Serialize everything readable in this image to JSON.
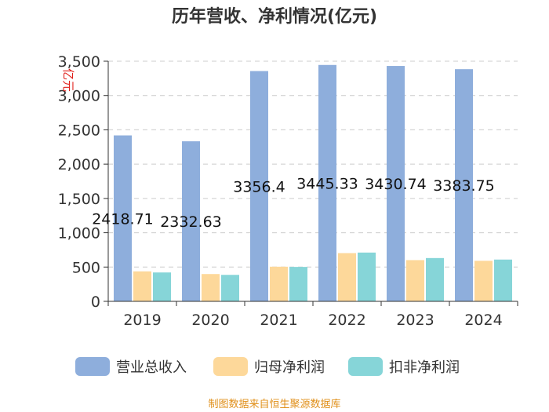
{
  "chart_data": {
    "type": "bar",
    "title": "历年营收、净利情况(亿元)",
    "ylabel": "亿元",
    "xlabel": "",
    "categories": [
      "2019",
      "2020",
      "2021",
      "2022",
      "2023",
      "2024"
    ],
    "ylim": [
      0,
      3500
    ],
    "yticks": [
      0,
      500,
      1000,
      1500,
      2000,
      2500,
      3000,
      3500
    ],
    "ytick_labels": [
      "0",
      "500",
      "1,000",
      "1,500",
      "2,000",
      "2,500",
      "3,000",
      "3,500"
    ],
    "grid": true,
    "legend_position": "bottom",
    "series": [
      {
        "name": "营业总收入",
        "color": "#8eaedc",
        "values": [
          2418.71,
          2332.63,
          3356.4,
          3445.33,
          3430.74,
          3383.75
        ],
        "data_labels": [
          "2418.71",
          "2332.63",
          "3356.4",
          "3445.33",
          "3430.74",
          "3383.75"
        ]
      },
      {
        "name": "归母净利润",
        "color": "#fdd89a",
        "values": [
          437,
          398,
          505,
          703,
          601,
          591
        ]
      },
      {
        "name": "扣非净利润",
        "color": "#86d5d8",
        "values": [
          421,
          386,
          502,
          711,
          631,
          609
        ]
      }
    ]
  },
  "source_text": "制图数据来自恒生聚源数据库"
}
